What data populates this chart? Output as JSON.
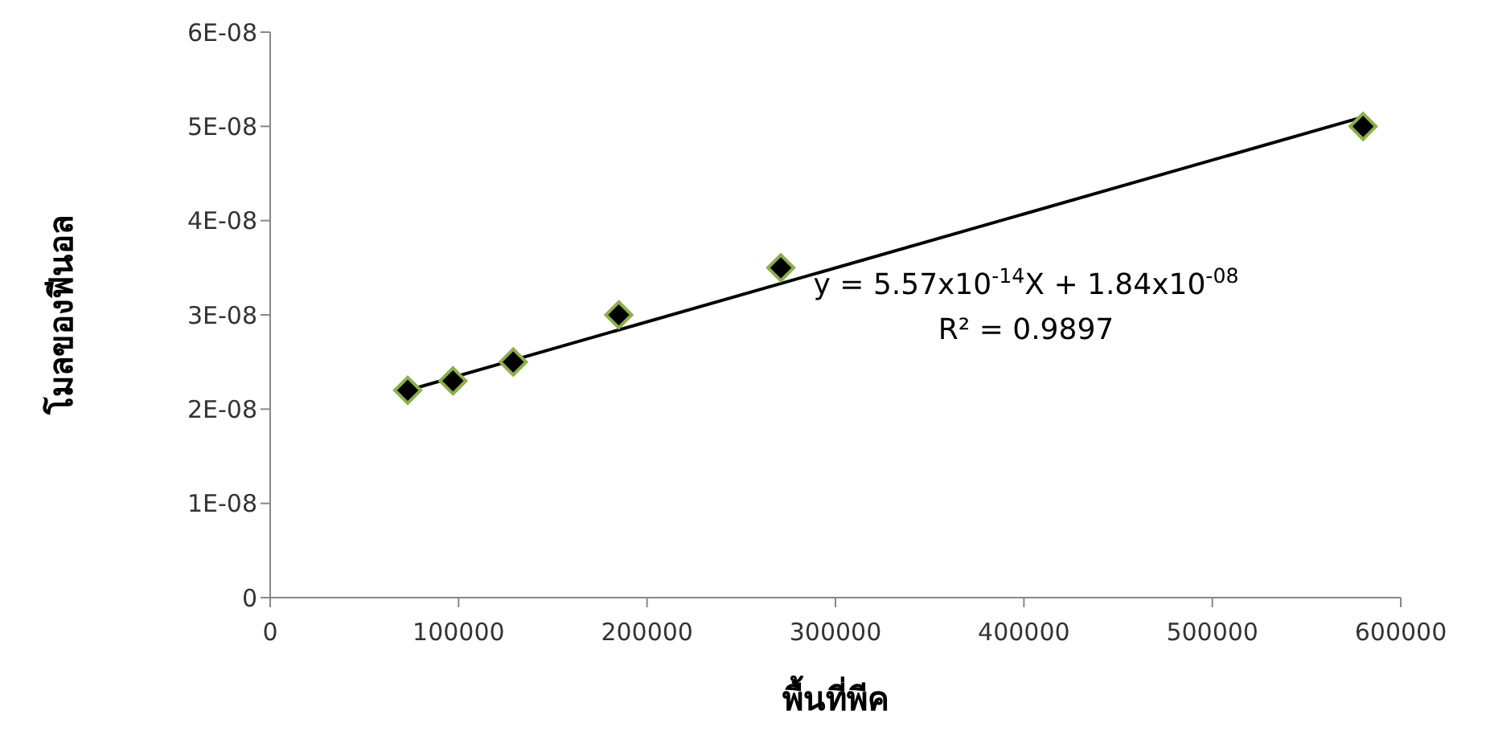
{
  "chart_data": {
    "type": "scatter",
    "xlabel": "พื้นที่พีค",
    "ylabel": "โมลของฟีนอล",
    "series": [
      {
        "color": "#000000",
        "x": [
          73000,
          97000,
          129000,
          185000,
          271000,
          580000
        ],
        "values": [
          2.2e-08,
          2.3e-08,
          2.5e-08,
          3e-08,
          3.5e-08,
          5e-08
        ],
        "marker": "diamond"
      },
      {
        "type": "line",
        "color": "#000000",
        "x": [
          73000,
          580000
        ],
        "values": [
          2.2e-08,
          5.1e-08
        ],
        "marker": "none",
        "line_style": "solid"
      }
    ],
    "xlim": [
      0,
      600000
    ],
    "xticks": [
      0,
      100000,
      200000,
      300000,
      400000,
      500000,
      600000
    ],
    "ylim": [
      0,
      6e-08
    ],
    "yticks": [
      0,
      {
        "value": 1e-08,
        "label": "1E-08"
      },
      {
        "value": 2e-08,
        "label": "2E-08"
      },
      {
        "value": 3e-08,
        "label": "3E-08"
      },
      {
        "value": 4e-08,
        "label": "4E-08"
      },
      {
        "value": 5e-08,
        "label": "5E-08"
      },
      {
        "value": 6e-08,
        "label": "6E-08"
      }
    ],
    "grid": false,
    "legend": false,
    "annotations": [
      "y = 5.57x10$^{-14}$X + 1.84x10$^{-08}$",
      "R² = 0.9897"
    ]
  }
}
